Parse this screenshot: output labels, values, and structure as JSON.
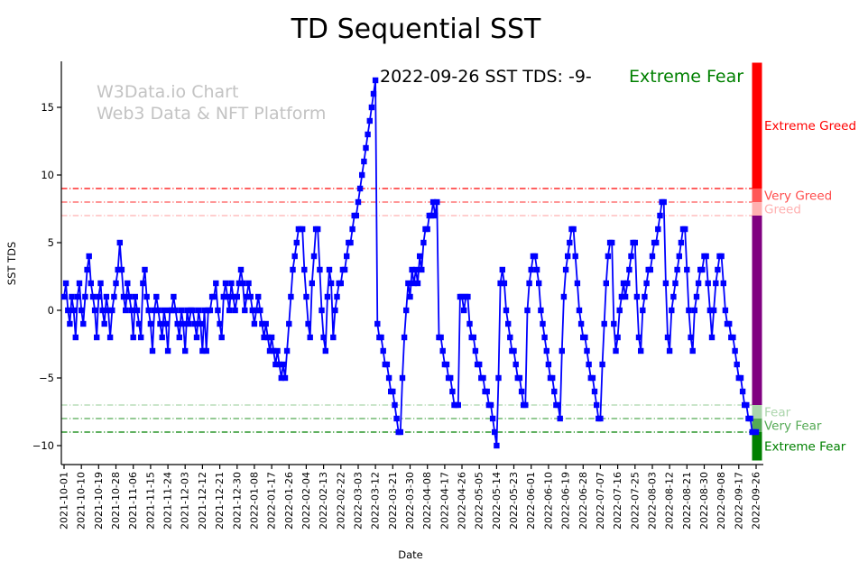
{
  "title": "TD Sequential SST",
  "watermark": {
    "line1": "W3Data.io Chart",
    "line2": "Web3 Data & NFT Platform",
    "color": "#c3c3c3"
  },
  "annotation": {
    "date_text": "2022-09-26 SST TDS: -9-",
    "status_text": "Extreme Fear",
    "status_color": "#008000"
  },
  "axes": {
    "x_label": "Date",
    "y_label": "SST TDS",
    "y_ticks": [
      -10,
      -5,
      0,
      5,
      10,
      15
    ]
  },
  "levels": [
    {
      "value": 9,
      "color": "#ff0000"
    },
    {
      "value": 8,
      "color": "#ff5757"
    },
    {
      "value": 7,
      "color": "#ffb0b0"
    },
    {
      "value": -7,
      "color": "#abd5ab"
    },
    {
      "value": -8,
      "color": "#55aa55"
    },
    {
      "value": -9,
      "color": "#008000"
    }
  ],
  "zones": [
    {
      "name": "Extreme Greed",
      "from": 9,
      "to": 18.3,
      "color": "#ff0000",
      "label": "Extreme Greed",
      "label_color": "#ff0000"
    },
    {
      "name": "Very Greed",
      "from": 8,
      "to": 9,
      "color": "#ff5757",
      "label": "Very Greed",
      "label_color": "#ff4d4d"
    },
    {
      "name": "Greed",
      "from": 7,
      "to": 8,
      "color": "#ffb0b0",
      "label": "Greed",
      "label_color": "#ffb0b0"
    },
    {
      "name": "Neutral",
      "from": -7,
      "to": 7,
      "color": "#800080",
      "label": "",
      "label_color": "#800080"
    },
    {
      "name": "Fear",
      "from": -8,
      "to": -7,
      "color": "#abd5ab",
      "label": "Fear",
      "label_color": "#abd5ab"
    },
    {
      "name": "Very Fear",
      "from": -9,
      "to": -8,
      "color": "#55aa55",
      "label": "Very Fear",
      "label_color": "#55aa55"
    },
    {
      "name": "Extreme Fear",
      "from": -11.1,
      "to": -9,
      "color": "#008000",
      "label": "Extreme Fear",
      "label_color": "#008000"
    }
  ],
  "chart_data": {
    "type": "line",
    "title": "TD Sequential SST",
    "xlabel": "Date",
    "ylabel": "SST TDS",
    "ylim": [
      -11.1,
      18.3
    ],
    "grid": false,
    "line_color": "#0000ff",
    "marker": "square",
    "x_start": "2021-10-01",
    "x_end": "2022-09-26",
    "x_interval_days": 1,
    "x_tick_every": 9,
    "x_tick_labels": [
      "2021-10-01",
      "2021-10-10",
      "2021-10-19",
      "2021-10-28",
      "2021-11-06",
      "2021-11-15",
      "2021-11-24",
      "2021-12-03",
      "2021-12-12",
      "2021-12-21",
      "2021-12-30",
      "2022-01-08",
      "2022-01-17",
      "2022-01-26",
      "2022-02-04",
      "2022-02-13",
      "2022-02-22",
      "2022-03-03",
      "2022-03-12",
      "2022-03-21",
      "2022-03-30",
      "2022-04-08",
      "2022-04-17",
      "2022-04-26",
      "2022-05-05",
      "2022-05-14",
      "2022-05-23",
      "2022-06-01",
      "2022-06-10",
      "2022-06-19",
      "2022-06-28",
      "2022-07-07",
      "2022-07-16",
      "2022-07-25",
      "2022-08-03",
      "2022-08-12",
      "2022-08-21",
      "2022-08-30",
      "2022-09-08",
      "2022-09-17",
      "2022-09-26"
    ],
    "series": [
      {
        "name": "SST TDS",
        "values": [
          1,
          2,
          0,
          -1,
          1,
          0,
          -2,
          1,
          2,
          0,
          -1,
          1,
          3,
          4,
          2,
          1,
          0,
          -2,
          1,
          2,
          0,
          -1,
          1,
          0,
          -2,
          0,
          1,
          2,
          3,
          5,
          3,
          1,
          0,
          2,
          1,
          0,
          -2,
          1,
          0,
          -1,
          -2,
          2,
          3,
          1,
          0,
          -1,
          -3,
          0,
          1,
          0,
          -1,
          -2,
          0,
          -1,
          -3,
          0,
          0,
          1,
          0,
          -1,
          -2,
          0,
          -1,
          -3,
          0,
          -1,
          0,
          0,
          -1,
          -2,
          0,
          -1,
          -3,
          0,
          -3,
          0,
          0,
          1,
          1,
          2,
          0,
          -1,
          -2,
          1,
          2,
          1,
          0,
          2,
          1,
          0,
          1,
          2,
          3,
          2,
          0,
          1,
          2,
          1,
          0,
          -1,
          0,
          1,
          0,
          -1,
          -2,
          -1,
          -2,
          -3,
          -2,
          -3,
          -4,
          -3,
          -4,
          -5,
          -4,
          -5,
          -3,
          -1,
          1,
          3,
          4,
          5,
          6,
          6,
          6,
          3,
          1,
          -1,
          -2,
          2,
          4,
          6,
          6,
          3,
          0,
          -2,
          -3,
          1,
          3,
          2,
          -2,
          0,
          1,
          2,
          2,
          3,
          3,
          4,
          5,
          5,
          6,
          7,
          7,
          8,
          9,
          10,
          11,
          12,
          13,
          14,
          15,
          16,
          17,
          -1,
          -2,
          -2,
          -3,
          -4,
          -4,
          -5,
          -6,
          -6,
          -7,
          -8,
          -9,
          -9,
          -5,
          -2,
          0,
          2,
          1,
          3,
          2,
          3,
          2,
          4,
          3,
          5,
          6,
          6,
          7,
          7,
          8,
          7,
          8,
          -2,
          -2,
          -3,
          -4,
          -4,
          -5,
          -5,
          -6,
          -7,
          -7,
          -7,
          1,
          1,
          0,
          1,
          1,
          -1,
          -2,
          -2,
          -3,
          -4,
          -4,
          -5,
          -5,
          -6,
          -6,
          -7,
          -7,
          -8,
          -9,
          -10,
          -5,
          2,
          3,
          2,
          0,
          -1,
          -2,
          -3,
          -3,
          -4,
          -5,
          -5,
          -6,
          -7,
          -7,
          0,
          2,
          3,
          4,
          4,
          3,
          2,
          0,
          -1,
          -2,
          -3,
          -4,
          -5,
          -5,
          -6,
          -7,
          -7,
          -8,
          -3,
          1,
          3,
          4,
          5,
          6,
          6,
          4,
          2,
          0,
          -1,
          -2,
          -2,
          -3,
          -4,
          -5,
          -5,
          -6,
          -7,
          -8,
          -8,
          -4,
          -1,
          2,
          4,
          5,
          5,
          -1,
          -3,
          -2,
          0,
          1,
          2,
          1,
          2,
          3,
          4,
          5,
          5,
          1,
          -2,
          -3,
          0,
          1,
          2,
          3,
          3,
          4,
          5,
          5,
          6,
          7,
          8,
          8,
          2,
          -2,
          -3,
          0,
          1,
          2,
          3,
          4,
          5,
          6,
          6,
          3,
          0,
          -2,
          -3,
          0,
          1,
          2,
          3,
          3,
          4,
          4,
          2,
          0,
          -2,
          0,
          2,
          3,
          4,
          4,
          2,
          0,
          -1,
          -1,
          -2,
          -2,
          -3,
          -4,
          -5,
          -5,
          -6,
          -7,
          -7,
          -8,
          -8,
          -9,
          -9,
          -9
        ]
      }
    ]
  }
}
